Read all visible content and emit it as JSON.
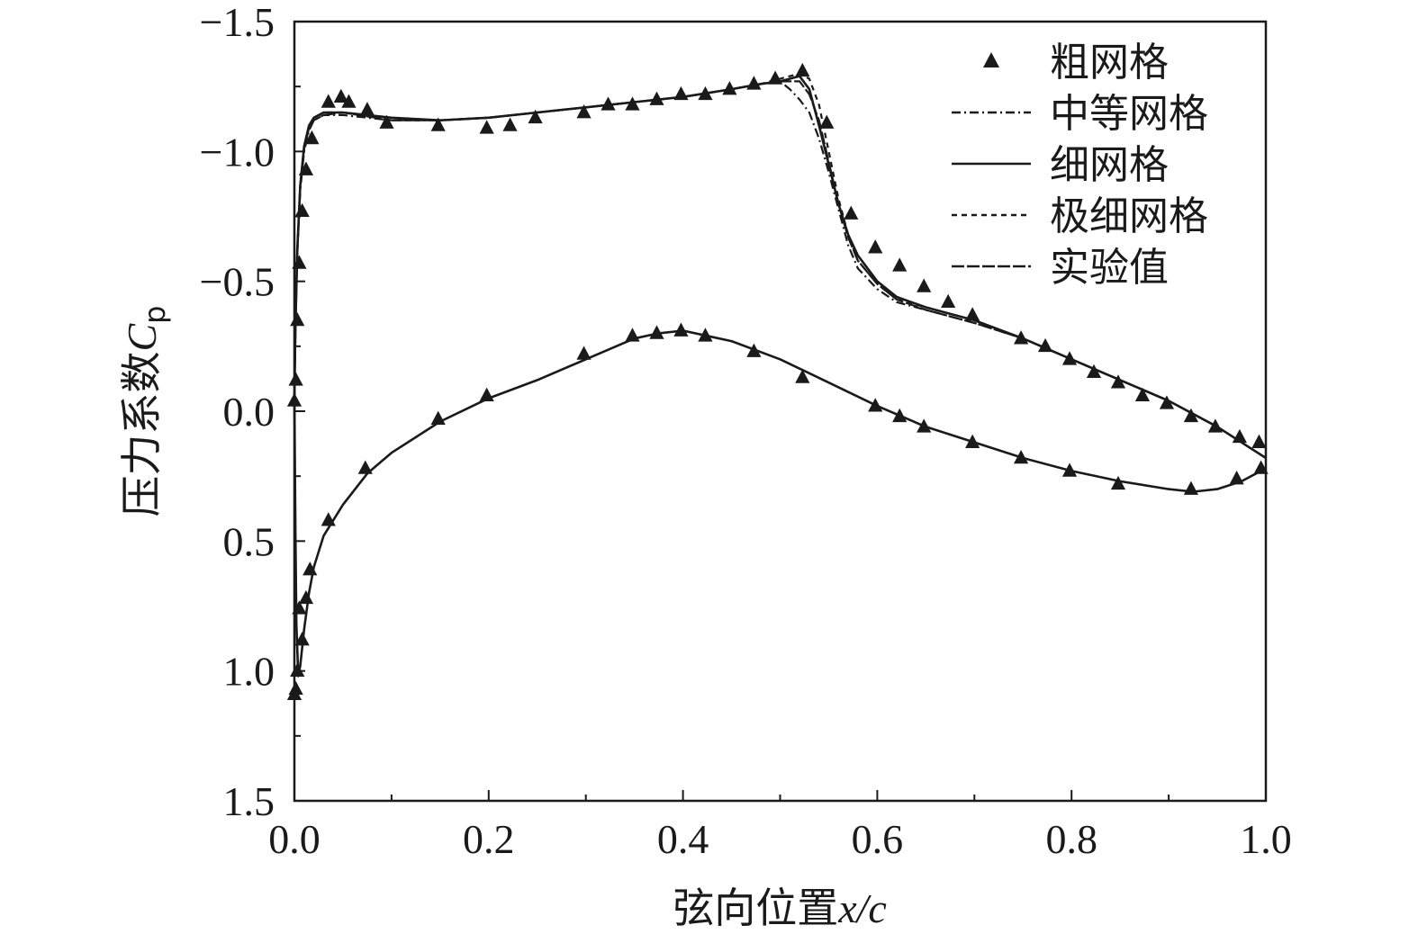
{
  "chart_data": {
    "type": "line",
    "title": "",
    "xlabel": {
      "prefix": "弦向位置",
      "var": "x/c"
    },
    "ylabel": {
      "prefix": "压力系数",
      "var": "C",
      "sub": "p"
    },
    "xlim": [
      0.0,
      1.0
    ],
    "ylim": [
      -1.5,
      1.5
    ],
    "y_inverted": true,
    "x_ticks": [
      "0.0",
      "0.2",
      "0.4",
      "0.6",
      "0.8",
      "1.0"
    ],
    "y_ticks": [
      "−1.5",
      "−1.0",
      "−0.5",
      "0.0",
      "0.5",
      "1.0",
      "1.5"
    ],
    "legend_position": "top-right",
    "legend": [
      "粗网格",
      "中等网格",
      "细网格",
      "极细网格",
      "实验值"
    ],
    "series": [
      {
        "name": "粗网格",
        "style": "triangle-markers",
        "x": [
          0.0,
          0.0015,
          0.003,
          0.005,
          0.008,
          0.012,
          0.018,
          0.035,
          0.048,
          0.056,
          0.075,
          0.095,
          0.148,
          0.198,
          0.222,
          0.248,
          0.298,
          0.323,
          0.348,
          0.373,
          0.398,
          0.423,
          0.448,
          0.473,
          0.495,
          0.523,
          0.548,
          0.573,
          0.598,
          0.623,
          0.648,
          0.673,
          0.698,
          0.748,
          0.773,
          0.798,
          0.823,
          0.848,
          0.873,
          0.898,
          0.923,
          0.948,
          0.973,
          0.993
        ],
        "y": [
          -0.04,
          -0.12,
          -0.35,
          -0.57,
          -0.77,
          -0.93,
          -1.05,
          -1.19,
          -1.21,
          -1.19,
          -1.16,
          -1.11,
          -1.1,
          -1.09,
          -1.1,
          -1.13,
          -1.15,
          -1.18,
          -1.18,
          -1.2,
          -1.22,
          -1.22,
          -1.24,
          -1.26,
          -1.28,
          -1.31,
          -1.11,
          -0.76,
          -0.63,
          -0.56,
          -0.48,
          -0.42,
          -0.37,
          -0.28,
          -0.25,
          -0.2,
          -0.15,
          -0.11,
          -0.06,
          -0.03,
          0.02,
          0.06,
          0.1,
          0.12
        ]
      },
      {
        "name": "粗网格",
        "style": "triangle-markers",
        "x": [
          0.0,
          0.0015,
          0.003,
          0.005,
          0.008,
          0.012,
          0.016,
          0.035,
          0.073,
          0.148,
          0.198,
          0.298,
          0.348,
          0.373,
          0.398,
          0.423,
          0.473,
          0.523,
          0.598,
          0.623,
          0.648,
          0.698,
          0.748,
          0.798,
          0.848,
          0.923,
          0.97,
          0.995
        ],
        "y": [
          1.09,
          1.07,
          1.0,
          0.76,
          0.88,
          0.72,
          0.61,
          0.42,
          0.22,
          0.03,
          -0.06,
          -0.22,
          -0.29,
          -0.3,
          -0.31,
          -0.29,
          -0.23,
          -0.13,
          -0.02,
          0.02,
          0.06,
          0.12,
          0.18,
          0.23,
          0.28,
          0.3,
          0.26,
          0.22
        ]
      },
      {
        "name": "中等网格",
        "style": "dash-dot",
        "x": [
          0.0,
          0.001,
          0.003,
          0.006,
          0.01,
          0.015,
          0.02,
          0.03,
          0.05,
          0.1,
          0.15,
          0.2,
          0.25,
          0.3,
          0.35,
          0.4,
          0.45,
          0.48,
          0.5,
          0.51,
          0.52,
          0.53,
          0.54,
          0.55,
          0.56,
          0.57,
          0.58,
          0.6,
          0.62,
          0.65,
          0.7,
          0.75,
          0.8,
          0.85,
          0.9,
          0.95,
          1.0
        ],
        "y": [
          -0.05,
          -0.3,
          -0.6,
          -0.85,
          -1.0,
          -1.08,
          -1.12,
          -1.14,
          -1.14,
          -1.12,
          -1.12,
          -1.13,
          -1.15,
          -1.17,
          -1.19,
          -1.21,
          -1.24,
          -1.26,
          -1.27,
          -1.24,
          -1.2,
          -1.15,
          -1.05,
          -0.92,
          -0.78,
          -0.64,
          -0.55,
          -0.47,
          -0.42,
          -0.39,
          -0.34,
          -0.28,
          -0.2,
          -0.12,
          -0.04,
          0.06,
          0.18
        ]
      },
      {
        "name": "细网格",
        "style": "solid",
        "x": [
          0.0,
          0.001,
          0.003,
          0.006,
          0.01,
          0.015,
          0.02,
          0.03,
          0.05,
          0.1,
          0.15,
          0.2,
          0.25,
          0.3,
          0.35,
          0.4,
          0.45,
          0.48,
          0.5,
          0.52,
          0.53,
          0.54,
          0.55,
          0.56,
          0.57,
          0.58,
          0.6,
          0.62,
          0.65,
          0.7,
          0.75,
          0.8,
          0.85,
          0.9,
          0.95,
          1.0
        ],
        "y": [
          -0.05,
          -0.32,
          -0.62,
          -0.87,
          -1.02,
          -1.1,
          -1.13,
          -1.15,
          -1.15,
          -1.13,
          -1.12,
          -1.13,
          -1.15,
          -1.17,
          -1.19,
          -1.21,
          -1.24,
          -1.26,
          -1.27,
          -1.29,
          -1.24,
          -1.1,
          -0.95,
          -0.8,
          -0.68,
          -0.6,
          -0.5,
          -0.44,
          -0.4,
          -0.35,
          -0.28,
          -0.2,
          -0.12,
          -0.04,
          0.06,
          0.18
        ]
      },
      {
        "name": "极细网格",
        "style": "dashed",
        "x": [
          0.0,
          0.001,
          0.003,
          0.006,
          0.01,
          0.015,
          0.02,
          0.03,
          0.05,
          0.1,
          0.15,
          0.2,
          0.25,
          0.3,
          0.35,
          0.4,
          0.45,
          0.48,
          0.5,
          0.52,
          0.53,
          0.54,
          0.55,
          0.56,
          0.57,
          0.58,
          0.6,
          0.62,
          0.65,
          0.7,
          0.75,
          0.8,
          0.85,
          0.9,
          0.95,
          1.0
        ],
        "y": [
          -0.05,
          -0.32,
          -0.62,
          -0.87,
          -1.02,
          -1.1,
          -1.13,
          -1.15,
          -1.15,
          -1.12,
          -1.12,
          -1.13,
          -1.15,
          -1.17,
          -1.19,
          -1.21,
          -1.24,
          -1.26,
          -1.28,
          -1.3,
          -1.28,
          -1.18,
          -1.0,
          -0.82,
          -0.68,
          -0.58,
          -0.49,
          -0.43,
          -0.4,
          -0.35,
          -0.28,
          -0.2,
          -0.12,
          -0.04,
          0.06,
          0.18
        ]
      },
      {
        "name": "实验值",
        "style": "long-dash",
        "x": [
          0.0,
          0.001,
          0.003,
          0.006,
          0.01,
          0.015,
          0.02,
          0.03,
          0.05,
          0.1,
          0.15,
          0.2,
          0.25,
          0.3,
          0.35,
          0.4,
          0.45,
          0.48,
          0.5,
          0.52,
          0.53,
          0.54,
          0.55,
          0.56,
          0.57,
          0.58,
          0.6,
          0.62,
          0.65,
          0.7,
          0.75,
          0.8,
          0.85,
          0.9,
          0.95,
          1.0
        ],
        "y": [
          -0.05,
          -0.31,
          -0.61,
          -0.86,
          -1.01,
          -1.09,
          -1.12,
          -1.14,
          -1.15,
          -1.12,
          -1.12,
          -1.13,
          -1.15,
          -1.17,
          -1.19,
          -1.21,
          -1.24,
          -1.26,
          -1.27,
          -1.27,
          -1.22,
          -1.12,
          -0.96,
          -0.8,
          -0.67,
          -0.58,
          -0.49,
          -0.43,
          -0.39,
          -0.34,
          -0.28,
          -0.2,
          -0.12,
          -0.04,
          0.06,
          0.18
        ]
      },
      {
        "name": "",
        "style": "solid",
        "x": [
          0.0,
          0.001,
          0.002,
          0.004,
          0.006,
          0.01,
          0.015,
          0.02,
          0.03,
          0.05,
          0.075,
          0.1,
          0.15,
          0.2,
          0.25,
          0.3,
          0.35,
          0.375,
          0.4,
          0.425,
          0.45,
          0.5,
          0.55,
          0.6,
          0.65,
          0.7,
          0.75,
          0.8,
          0.85,
          0.9,
          0.925,
          0.95,
          0.975,
          1.0
        ],
        "y": [
          -0.05,
          0.45,
          0.82,
          1.02,
          0.98,
          0.84,
          0.7,
          0.6,
          0.48,
          0.36,
          0.24,
          0.16,
          0.04,
          -0.05,
          -0.12,
          -0.2,
          -0.28,
          -0.3,
          -0.31,
          -0.29,
          -0.27,
          -0.2,
          -0.11,
          -0.02,
          0.06,
          0.12,
          0.18,
          0.23,
          0.27,
          0.3,
          0.31,
          0.3,
          0.27,
          0.22
        ]
      }
    ]
  }
}
